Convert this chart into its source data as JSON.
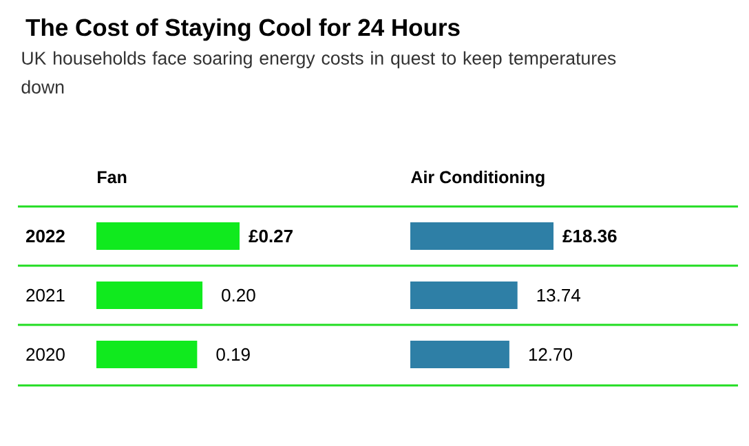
{
  "chart_data": [
    {
      "type": "bar",
      "orientation": "horizontal",
      "title": "The Cost of Staying Cool for 24 Hours",
      "subtitle": "UK households face soaring energy costs in quest to keep temperatures down",
      "xlabel": "Fan",
      "categories": [
        "2022",
        "2021",
        "2020"
      ],
      "values": [
        0.27,
        0.2,
        0.19
      ],
      "value_labels": [
        "£0.27",
        "0.20",
        "0.19"
      ],
      "color": "#10ea1e",
      "xlim": [
        0,
        0.27
      ],
      "tick_labels": "y"
    },
    {
      "type": "bar",
      "orientation": "horizontal",
      "xlabel": "Air Conditioning",
      "categories": [
        "2022",
        "2021",
        "2020"
      ],
      "values": [
        18.36,
        13.74,
        12.7
      ],
      "value_labels": [
        "£18.36",
        "13.74",
        "12.70"
      ],
      "color": "#2e7fa6",
      "xlim": [
        0,
        18.36
      ],
      "tick_labels": false
    }
  ]
}
